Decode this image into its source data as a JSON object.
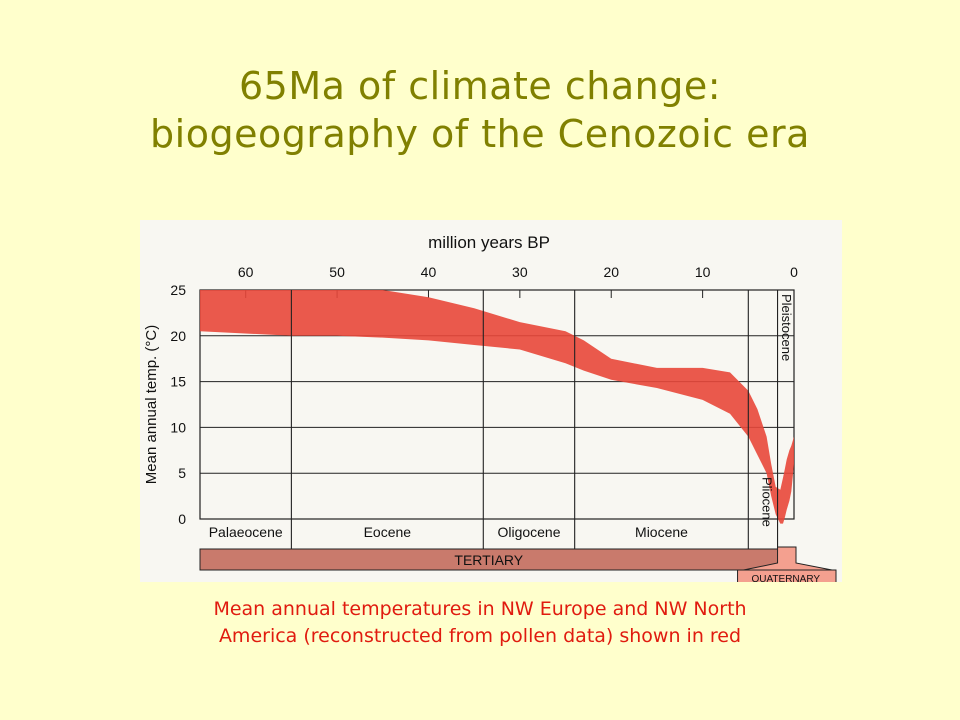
{
  "slide": {
    "title_line1": "65Ma of climate change:",
    "title_line2": "biogeography of the Cenozoic era",
    "caption_line1": "Mean annual temperatures in NW Europe and NW North",
    "caption_line2": "America (reconstructed from pollen data) shown in red"
  },
  "chart_data": {
    "type": "area",
    "title": "",
    "xlabel": "million years BP",
    "ylabel": "Mean annual temp. (°C)",
    "x_ticks": [
      "60",
      "50",
      "40",
      "30",
      "20",
      "10",
      "0"
    ],
    "y_ticks": [
      "25",
      "20",
      "15",
      "10",
      "5",
      "0"
    ],
    "xlim": [
      65,
      0
    ],
    "ylim": [
      0,
      25
    ],
    "grid": true,
    "band_color": "#e8473a",
    "series": [
      {
        "x": [
          65,
          55,
          53,
          50,
          45,
          40,
          35,
          30,
          25,
          23,
          20,
          15,
          10,
          7,
          5,
          4,
          3,
          2.5,
          2,
          1.5,
          1.2,
          1,
          0.8,
          0.5,
          0.3,
          0
        ],
        "lower": [
          20.5,
          20,
          20,
          20,
          19.8,
          19.5,
          19,
          18.5,
          17,
          16.2,
          15.2,
          14.3,
          13,
          11.5,
          9,
          7,
          5,
          2.5,
          0.5,
          -0.5,
          -0.5,
          0.2,
          1,
          2,
          3,
          6
        ],
        "upper": [
          25,
          25,
          25,
          25,
          25,
          24.2,
          23,
          21.5,
          20.5,
          19.5,
          17.5,
          16.5,
          16.5,
          16,
          14,
          12,
          9,
          6,
          3.5,
          3.2,
          4.5,
          5.5,
          6.5,
          7.5,
          8,
          9
        ]
      }
    ],
    "epochs": [
      {
        "label": "Palaeocene",
        "from": 65,
        "to": 55
      },
      {
        "label": "Eocene",
        "from": 55,
        "to": 34
      },
      {
        "label": "Oligocene",
        "from": 34,
        "to": 24
      },
      {
        "label": "Miocene",
        "from": 24,
        "to": 5
      },
      {
        "label": "Pliocene",
        "from": 5,
        "to": 1.8
      },
      {
        "label": "Pleistocene",
        "from": 1.8,
        "to": 0
      }
    ],
    "periods": [
      {
        "label": "TERTIARY",
        "from": 65,
        "to": 1.8
      },
      {
        "label": "QUATERNARY",
        "from": 1.8,
        "to": 0
      }
    ]
  }
}
